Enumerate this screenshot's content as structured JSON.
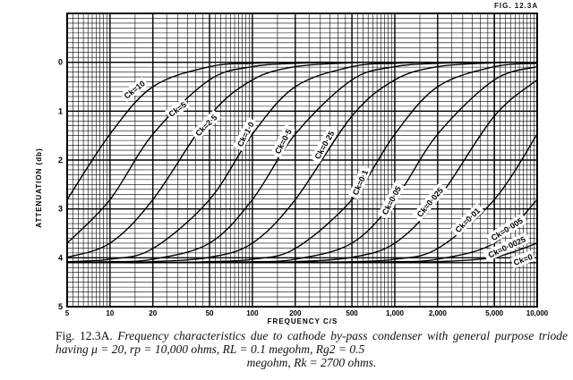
{
  "figure_label": "FIG. 12.3A",
  "caption": {
    "number": "Fig. 12.3A.",
    "line1": "Frequency characteristics due to cathode by-pass condenser with general",
    "line2": "purpose triode having μ = 20, rp = 10,000 ohms, RL = 0.1 megohm, Rg2 = 0.5",
    "line3": "megohm, Rk = 2700 ohms."
  },
  "chart_data": {
    "type": "line",
    "title": "",
    "xlabel": "FREQUENCY C/S",
    "ylabel": "ATTENUATION (db)",
    "xscale": "log",
    "xlim": [
      5,
      10000
    ],
    "ylim": [
      -1,
      5
    ],
    "y_inverted": true,
    "grid": true,
    "x_ticks": [
      "5",
      "10",
      "20",
      "50",
      "100",
      "200",
      "500",
      "1,000",
      "2,000",
      "5,000",
      "10,000"
    ],
    "y_ticks": [
      "0",
      "1",
      "2",
      "3",
      "4",
      "5"
    ],
    "x": [
      5,
      10,
      20,
      50,
      100,
      200,
      500,
      1000,
      2000,
      5000,
      10000
    ],
    "series": [
      {
        "name": "Ck=10",
        "values": [
          2.81,
          1.47,
          0.5,
          0.09,
          0.02,
          0,
          0,
          0,
          0,
          0,
          0
        ]
      },
      {
        "name": "Ck=5",
        "values": [
          3.7,
          2.81,
          1.47,
          0.36,
          0.09,
          0.02,
          0,
          0,
          0,
          0,
          0
        ]
      },
      {
        "name": "Ck=2·5",
        "values": [
          3.99,
          3.7,
          2.81,
          1.1,
          0.36,
          0.09,
          0.01,
          0,
          0,
          0,
          0
        ]
      },
      {
        "name": "Ck=1·0",
        "values": [
          4.08,
          4.03,
          3.81,
          2.81,
          1.47,
          0.5,
          0.09,
          0.02,
          0,
          0,
          0
        ]
      },
      {
        "name": "Ck=0·5",
        "values": [
          4.09,
          4.08,
          4.03,
          3.7,
          2.81,
          1.47,
          0.36,
          0.09,
          0.02,
          0,
          0
        ]
      },
      {
        "name": "Ck=0·25",
        "values": [
          4.1,
          4.09,
          4.08,
          3.99,
          3.7,
          2.81,
          1.1,
          0.36,
          0.09,
          0.01,
          0
        ]
      },
      {
        "name": "Ck=0·1",
        "values": [
          4.1,
          4.1,
          4.1,
          4.08,
          4.03,
          3.81,
          2.81,
          1.47,
          0.5,
          0.09,
          0.02
        ]
      },
      {
        "name": "Ck=0·05",
        "values": [
          4.1,
          4.1,
          4.1,
          4.09,
          4.08,
          4.03,
          3.7,
          2.81,
          1.47,
          0.36,
          0.09
        ]
      },
      {
        "name": "Ck=0·025",
        "values": [
          4.1,
          4.1,
          4.1,
          4.1,
          4.09,
          4.08,
          3.99,
          3.7,
          2.81,
          1.1,
          0.36
        ]
      },
      {
        "name": "Ck=0·01",
        "values": [
          4.1,
          4.1,
          4.1,
          4.1,
          4.1,
          4.09,
          4.08,
          4.03,
          3.81,
          2.81,
          1.47
        ]
      },
      {
        "name": "Ck=0·005",
        "values": [
          4.1,
          4.1,
          4.1,
          4.1,
          4.1,
          4.1,
          4.09,
          4.08,
          4.03,
          3.7,
          2.81
        ]
      },
      {
        "name": "Ck=0·0025",
        "values": [
          4.1,
          4.1,
          4.1,
          4.1,
          4.1,
          4.1,
          4.1,
          4.09,
          4.08,
          3.99,
          3.7
        ]
      },
      {
        "name": "Ck=0",
        "values": [
          4.1,
          4.1,
          4.1,
          4.1,
          4.1,
          4.1,
          4.1,
          4.1,
          4.1,
          4.1,
          4.1
        ]
      }
    ]
  }
}
